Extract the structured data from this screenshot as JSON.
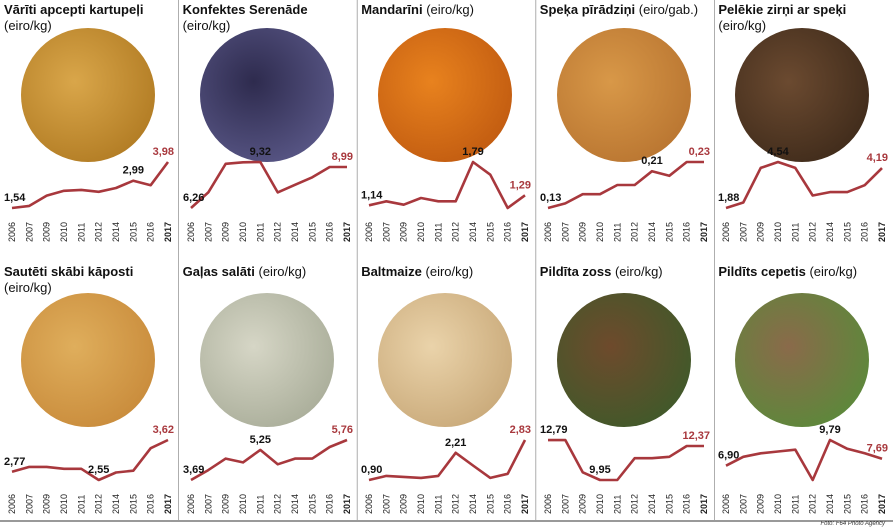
{
  "chart_data": [
    {
      "type": "line",
      "title": "Vārīti apcepti kartupeļi",
      "unit": "(eiro/kg)",
      "color": "#a8383d",
      "categories": [
        "2006",
        "2007",
        "2009",
        "2010",
        "2011",
        "2012",
        "2014",
        "2015",
        "2016",
        "2017"
      ],
      "values": [
        1.54,
        1.65,
        2.2,
        2.45,
        2.5,
        2.4,
        2.6,
        2.99,
        2.75,
        3.98
      ],
      "value_labels": [
        "1,54",
        null,
        null,
        null,
        null,
        null,
        null,
        "2,99",
        null,
        "3,98"
      ]
    },
    {
      "type": "line",
      "title": "Konfektes Serenāde",
      "unit": "(eiro/kg)",
      "color": "#a8383d",
      "categories": [
        "2006",
        "2007",
        "2009",
        "2010",
        "2011",
        "2012",
        "2014",
        "2015",
        "2016",
        "2017"
      ],
      "values": [
        6.26,
        7.3,
        9.2,
        9.3,
        9.32,
        7.3,
        7.8,
        8.3,
        8.99,
        8.99
      ],
      "value_labels": [
        "6,26",
        null,
        null,
        null,
        "9,32",
        null,
        null,
        null,
        null,
        "8,99"
      ]
    },
    {
      "type": "line",
      "title": "Mandarīni",
      "unit": "(eiro/kg)",
      "color": "#a8383d",
      "categories": [
        "2006",
        "2007",
        "2009",
        "2010",
        "2011",
        "2012",
        "2014",
        "2015",
        "2016",
        "2017"
      ],
      "values": [
        1.14,
        1.2,
        1.15,
        1.25,
        1.2,
        1.2,
        1.79,
        1.6,
        1.1,
        1.29
      ],
      "value_labels": [
        "1,14",
        null,
        null,
        null,
        null,
        null,
        "1,79",
        null,
        null,
        "1,29"
      ]
    },
    {
      "type": "line",
      "title": "Speķa pīrādziņi",
      "unit": "(eiro/gab.)",
      "color": "#a8383d",
      "categories": [
        "2006",
        "2007",
        "2009",
        "2010",
        "2011",
        "2012",
        "2014",
        "2015",
        "2016",
        "2017"
      ],
      "values": [
        0.13,
        0.14,
        0.16,
        0.16,
        0.18,
        0.18,
        0.21,
        0.2,
        0.23,
        0.23
      ],
      "value_labels": [
        "0,13",
        null,
        null,
        null,
        null,
        null,
        "0,21",
        null,
        null,
        "0,23"
      ]
    },
    {
      "type": "line",
      "title": "Pelēkie zirņi ar speķi",
      "unit": "(eiro/kg)",
      "color": "#a8383d",
      "categories": [
        "2006",
        "2007",
        "2009",
        "2010",
        "2011",
        "2012",
        "2014",
        "2015",
        "2016",
        "2017"
      ],
      "values": [
        1.88,
        2.2,
        4.2,
        4.54,
        4.2,
        2.6,
        2.8,
        2.8,
        3.2,
        4.19
      ],
      "value_labels": [
        "1,88",
        null,
        null,
        "4,54",
        null,
        null,
        null,
        null,
        null,
        "4,19"
      ]
    },
    {
      "type": "line",
      "title": "Sautēti skābi kāposti",
      "unit": "(eiro/kg)",
      "color": "#a8383d",
      "categories": [
        "2006",
        "2007",
        "2009",
        "2010",
        "2011",
        "2012",
        "2014",
        "2015",
        "2016",
        "2017"
      ],
      "values": [
        2.77,
        2.9,
        2.9,
        2.85,
        2.85,
        2.55,
        2.75,
        2.8,
        3.4,
        3.62
      ],
      "value_labels": [
        "2,77",
        null,
        null,
        null,
        null,
        "2,55",
        null,
        null,
        null,
        "3,62"
      ]
    },
    {
      "type": "line",
      "title": "Gaļas salāti",
      "unit": "(eiro/kg)",
      "color": "#a8383d",
      "categories": [
        "2006",
        "2007",
        "2009",
        "2010",
        "2011",
        "2012",
        "2014",
        "2015",
        "2016",
        "2017"
      ],
      "values": [
        3.69,
        4.2,
        4.8,
        4.6,
        5.25,
        4.5,
        4.8,
        4.8,
        5.4,
        5.76
      ],
      "value_labels": [
        "3,69",
        null,
        null,
        null,
        "5,25",
        null,
        null,
        null,
        null,
        "5,76"
      ]
    },
    {
      "type": "line",
      "title": "Baltmaize",
      "unit": "(eiro/kg)",
      "color": "#a8383d",
      "categories": [
        "2006",
        "2007",
        "2009",
        "2010",
        "2011",
        "2012",
        "2014",
        "2015",
        "2016",
        "2017"
      ],
      "values": [
        0.9,
        1.1,
        1.05,
        1.0,
        1.1,
        2.21,
        1.6,
        1.0,
        1.2,
        2.83
      ],
      "value_labels": [
        "0,90",
        null,
        null,
        null,
        null,
        "2,21",
        null,
        null,
        null,
        "2,83"
      ]
    },
    {
      "type": "line",
      "title": "Pildīta zoss",
      "unit": "(eiro/kg)",
      "color": "#a8383d",
      "categories": [
        "2006",
        "2007",
        "2009",
        "2010",
        "2011",
        "2012",
        "2014",
        "2015",
        "2016",
        "2017"
      ],
      "values": [
        12.79,
        12.8,
        10.5,
        9.95,
        9.95,
        11.5,
        11.5,
        11.6,
        12.37,
        12.37
      ],
      "value_labels": [
        "12,79",
        null,
        null,
        "9,95",
        null,
        null,
        null,
        null,
        null,
        "12,37"
      ]
    },
    {
      "type": "line",
      "title": "Pildīts cepetis",
      "unit": "(eiro/kg)",
      "color": "#a8383d",
      "categories": [
        "2006",
        "2007",
        "2009",
        "2010",
        "2011",
        "2012",
        "2014",
        "2015",
        "2016",
        "2017"
      ],
      "values": [
        6.9,
        7.9,
        8.3,
        8.5,
        8.7,
        5.3,
        9.79,
        8.8,
        8.3,
        7.69
      ],
      "value_labels": [
        "6,90",
        null,
        null,
        null,
        null,
        null,
        "9,79",
        null,
        null,
        "7,69"
      ]
    }
  ],
  "credit": "Foto: F64 Photo Agency"
}
